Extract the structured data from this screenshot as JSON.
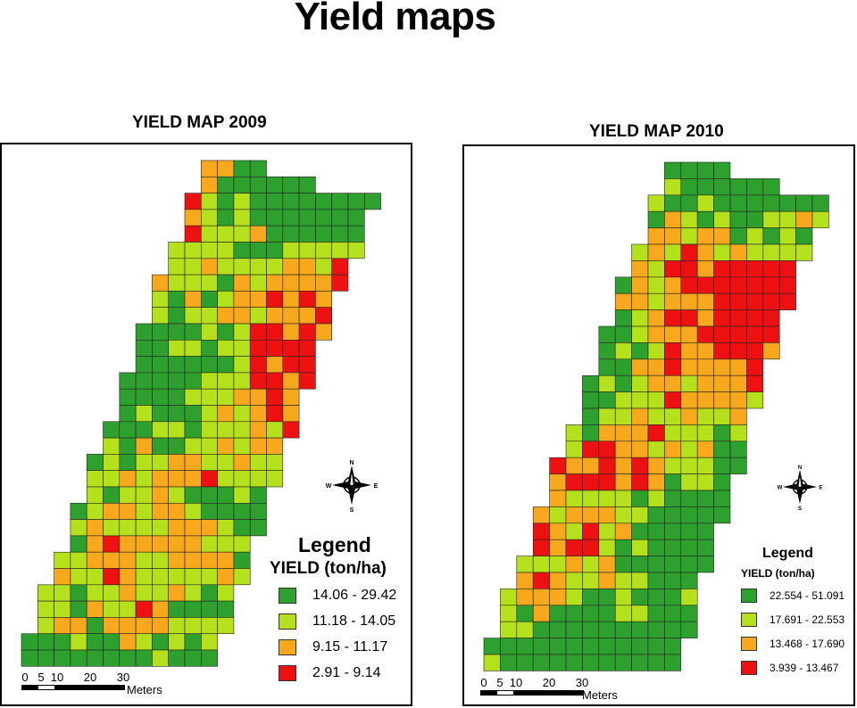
{
  "page_title": "Yield maps",
  "colors": {
    "dark_green": "#2ea02e",
    "light_green": "#b4e01c",
    "orange": "#f8a81c",
    "red": "#ee1111"
  },
  "compass": {
    "n": "N",
    "s": "S",
    "e": "E",
    "w": "W"
  },
  "maps": [
    {
      "title": "YIELD MAP 2009",
      "legend_title": "Legend",
      "legend_subtitle": "YIELD (ton/ha)",
      "legend": [
        {
          "label": "14.06 - 29.42",
          "color": "#2ea02e"
        },
        {
          "label": "11.18 - 14.05",
          "color": "#b4e01c"
        },
        {
          "label": "9.15 - 11.17",
          "color": "#f8a81c"
        },
        {
          "label": "2.91 - 9.14",
          "color": "#ee1111"
        }
      ],
      "scale_labels": [
        "0",
        "5",
        "10",
        "20",
        "30"
      ],
      "scale_unit": "Meters"
    },
    {
      "title": "YIELD MAP 2010",
      "legend_title": "Legend",
      "legend_subtitle": "YIELD (ton/ha)",
      "legend": [
        {
          "label": "22.554 - 51.091",
          "color": "#2ea02e"
        },
        {
          "label": "17.691 - 22.553",
          "color": "#b4e01c"
        },
        {
          "label": "13.468 - 17.690",
          "color": "#f8a81c"
        },
        {
          "label": "3.939 - 13.467",
          "color": "#ee1111"
        }
      ],
      "scale_labels": [
        "0",
        "5",
        "10",
        "20",
        "30"
      ],
      "scale_unit": "Meters"
    }
  ]
}
